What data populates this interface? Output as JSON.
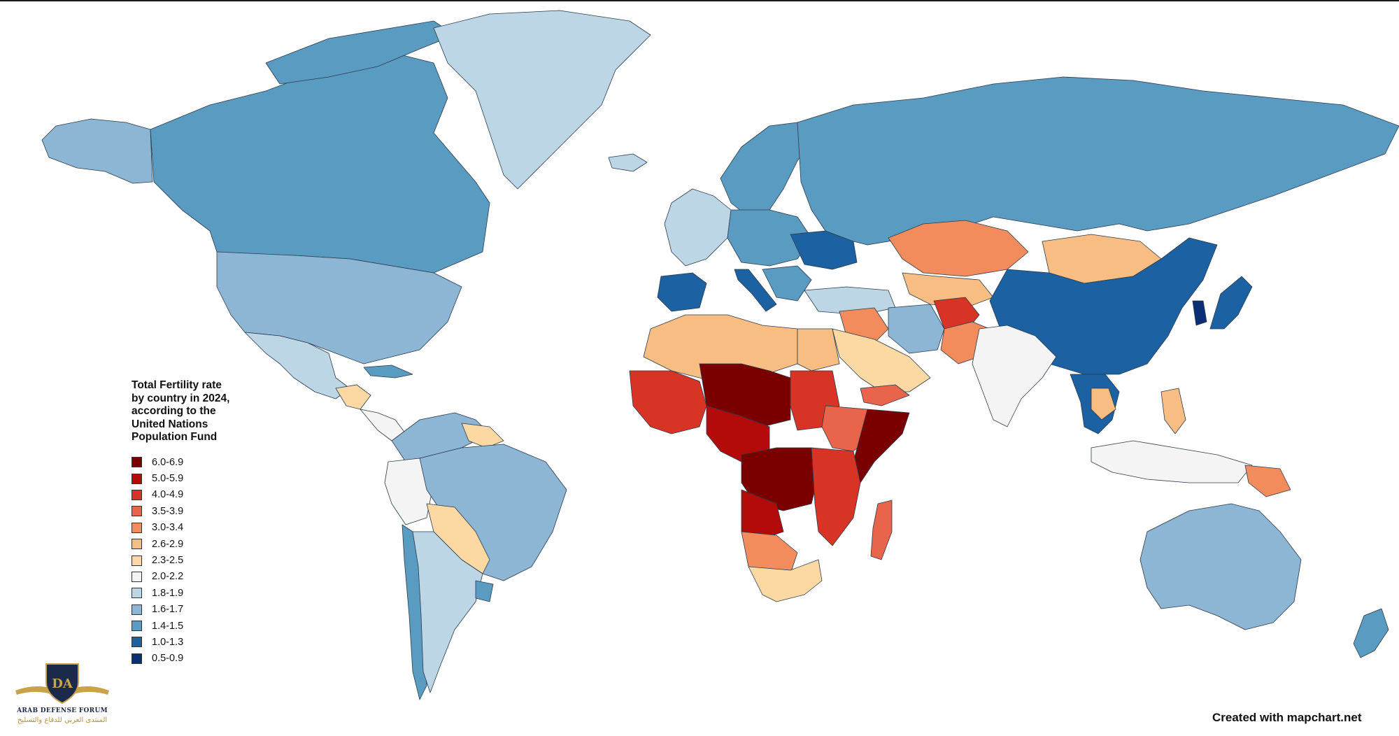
{
  "legend": {
    "title_lines": [
      "Total Fertility rate",
      "by country in 2024,",
      "according to the",
      "United Nations",
      "Population Fund"
    ],
    "entries": [
      {
        "label": "6.0-6.9",
        "color": "#7a0000"
      },
      {
        "label": "5.0-5.9",
        "color": "#b30a0a"
      },
      {
        "label": "4.0-4.9",
        "color": "#d73426"
      },
      {
        "label": "3.5-3.9",
        "color": "#e8644a"
      },
      {
        "label": "3.0-3.4",
        "color": "#f28c5c"
      },
      {
        "label": "2.6-2.9",
        "color": "#f8bd83"
      },
      {
        "label": "2.3-2.5",
        "color": "#fcd9a2"
      },
      {
        "label": "2.0-2.2",
        "color": "#f4f4f4"
      },
      {
        "label": "1.8-1.9",
        "color": "#bdd6e6"
      },
      {
        "label": "1.6-1.7",
        "color": "#8cb6d3"
      },
      {
        "label": "1.4-1.5",
        "color": "#5a9bc2"
      },
      {
        "label": "1.0-1.3",
        "color": "#1c62a3"
      },
      {
        "label": "0.5-0.9",
        "color": "#0b2f76"
      }
    ]
  },
  "credit": "Created with mapchart.net",
  "watermark": {
    "monogram": "DA",
    "name_en": "ARAB DEFENSE FORUM",
    "name_ar": "المنتدى العربي للدفاع والتسليح"
  },
  "regions": [
    {
      "name": "north-america",
      "color": "#8cb6d3"
    },
    {
      "name": "alaska",
      "color": "#8cb6d3"
    },
    {
      "name": "canada",
      "color": "#5a9bc2"
    },
    {
      "name": "canadian-arctic",
      "color": "#5a9bc2"
    },
    {
      "name": "greenland",
      "color": "#bdd6e6"
    },
    {
      "name": "iceland",
      "color": "#bdd6e6"
    },
    {
      "name": "mexico",
      "color": "#bdd6e6"
    },
    {
      "name": "central-america",
      "color": "#f4f4f4"
    },
    {
      "name": "guatemala-honduras",
      "color": "#fcd9a2"
    },
    {
      "name": "cuba",
      "color": "#5a9bc2"
    },
    {
      "name": "south-america-north",
      "color": "#8cb6d3"
    },
    {
      "name": "brazil",
      "color": "#8cb6d3"
    },
    {
      "name": "guianas",
      "color": "#fcd9a2"
    },
    {
      "name": "peru",
      "color": "#f4f4f4"
    },
    {
      "name": "bolivia-paraguay",
      "color": "#fcd9a2"
    },
    {
      "name": "argentina",
      "color": "#bdd6e6"
    },
    {
      "name": "chile",
      "color": "#5a9bc2"
    },
    {
      "name": "uruguay",
      "color": "#5a9bc2"
    },
    {
      "name": "russia",
      "color": "#5a9bc2"
    },
    {
      "name": "scandinavia",
      "color": "#5a9bc2"
    },
    {
      "name": "west-europe",
      "color": "#bdd6e6"
    },
    {
      "name": "central-europe",
      "color": "#5a9bc2"
    },
    {
      "name": "ukraine",
      "color": "#1c62a3"
    },
    {
      "name": "iberia",
      "color": "#1c62a3"
    },
    {
      "name": "italy",
      "color": "#1c62a3"
    },
    {
      "name": "balkans",
      "color": "#5a9bc2"
    },
    {
      "name": "turkey",
      "color": "#bdd6e6"
    },
    {
      "name": "kazakhstan",
      "color": "#f28c5c"
    },
    {
      "name": "central-asia",
      "color": "#f8bd83"
    },
    {
      "name": "mongolia",
      "color": "#f8bd83"
    },
    {
      "name": "china",
      "color": "#1c62a3"
    },
    {
      "name": "korea",
      "color": "#0b2f76"
    },
    {
      "name": "japan",
      "color": "#1c62a3"
    },
    {
      "name": "iran",
      "color": "#8cb6d3"
    },
    {
      "name": "iraq-syria",
      "color": "#f28c5c"
    },
    {
      "name": "afghanistan",
      "color": "#d73426"
    },
    {
      "name": "pakistan",
      "color": "#f28c5c"
    },
    {
      "name": "india",
      "color": "#f4f4f4"
    },
    {
      "name": "saudi-arabia",
      "color": "#fcd9a2"
    },
    {
      "name": "yemen",
      "color": "#e8644a"
    },
    {
      "name": "southeast-asia",
      "color": "#1c62a3"
    },
    {
      "name": "laos-cambodia",
      "color": "#f8bd83"
    },
    {
      "name": "philippines",
      "color": "#f8bd83"
    },
    {
      "name": "indonesia",
      "color": "#f4f4f4"
    },
    {
      "name": "papua",
      "color": "#f28c5c"
    },
    {
      "name": "australia",
      "color": "#8cb6d3"
    },
    {
      "name": "new-zealand",
      "color": "#5a9bc2"
    },
    {
      "name": "north-africa",
      "color": "#f8bd83"
    },
    {
      "name": "egypt",
      "color": "#f8bd83"
    },
    {
      "name": "west-africa",
      "color": "#d73426"
    },
    {
      "name": "sahel-east",
      "color": "#7a0000"
    },
    {
      "name": "nigeria-cameroon",
      "color": "#b30a0a"
    },
    {
      "name": "sudan",
      "color": "#d73426"
    },
    {
      "name": "ethiopia",
      "color": "#e8644a"
    },
    {
      "name": "somalia",
      "color": "#7a0000"
    },
    {
      "name": "drc",
      "color": "#7a0000"
    },
    {
      "name": "angola",
      "color": "#b30a0a"
    },
    {
      "name": "east-africa",
      "color": "#d73426"
    },
    {
      "name": "namibia-botswana",
      "color": "#f28c5c"
    },
    {
      "name": "south-africa",
      "color": "#fcd9a2"
    },
    {
      "name": "madagascar",
      "color": "#e8644a"
    }
  ]
}
